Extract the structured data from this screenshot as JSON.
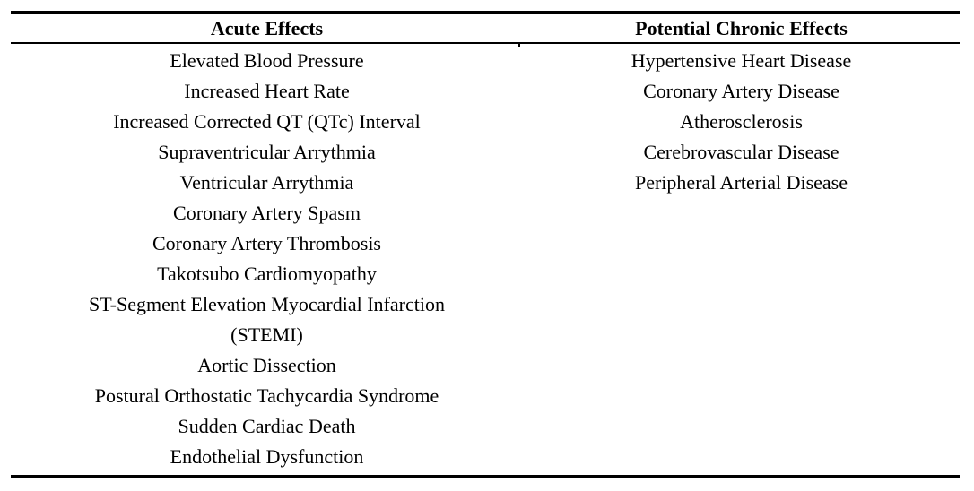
{
  "table": {
    "columns": [
      {
        "header": "Acute Effects",
        "items": [
          "Elevated Blood Pressure",
          "Increased Heart Rate",
          "Increased Corrected QT (QTc) Interval",
          "Supraventricular Arrythmia",
          "Ventricular Arrythmia",
          "Coronary Artery Spasm",
          "Coronary Artery Thrombosis",
          "Takotsubo Cardiomyopathy",
          "ST-Segment Elevation Myocardial Infarction\n(STEMI)",
          "Aortic Dissection",
          "Postural Orthostatic Tachycardia Syndrome",
          "Sudden Cardiac Death",
          "Endothelial Dysfunction"
        ]
      },
      {
        "header": "Potential Chronic Effects",
        "items": [
          "Hypertensive Heart Disease",
          "Coronary Artery Disease",
          "Atherosclerosis",
          "Cerebrovascular Disease",
          "Peripheral Arterial Disease"
        ]
      }
    ]
  },
  "colors": {
    "background": "#ffffff",
    "text": "#000000",
    "rule": "#000000"
  }
}
